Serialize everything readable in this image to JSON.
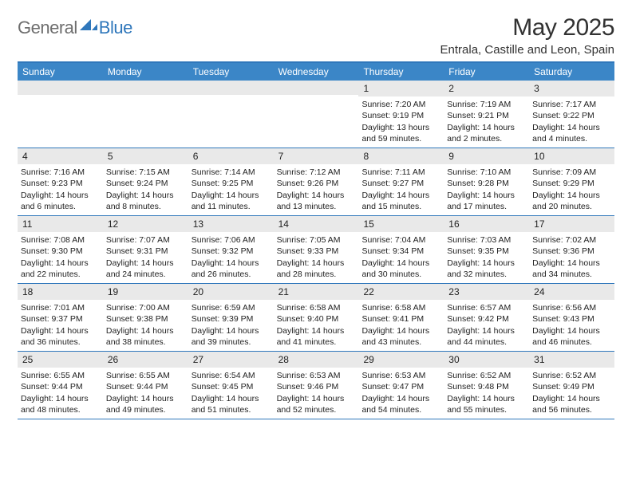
{
  "logo": {
    "general": "General",
    "blue": "Blue"
  },
  "title": "May 2025",
  "location": "Entrala, Castille and Leon, Spain",
  "colors": {
    "header_bar": "#3b86c7",
    "border": "#2f77bb",
    "daynum_bg": "#e9e9e9",
    "text": "#222222",
    "logo_gray": "#6e6e6e",
    "logo_blue": "#2f77bb"
  },
  "days_of_week": [
    "Sunday",
    "Monday",
    "Tuesday",
    "Wednesday",
    "Thursday",
    "Friday",
    "Saturday"
  ],
  "weeks": [
    [
      {
        "num": "",
        "lines": []
      },
      {
        "num": "",
        "lines": []
      },
      {
        "num": "",
        "lines": []
      },
      {
        "num": "",
        "lines": []
      },
      {
        "num": "1",
        "lines": [
          "Sunrise: 7:20 AM",
          "Sunset: 9:19 PM",
          "Daylight: 13 hours and 59 minutes."
        ]
      },
      {
        "num": "2",
        "lines": [
          "Sunrise: 7:19 AM",
          "Sunset: 9:21 PM",
          "Daylight: 14 hours and 2 minutes."
        ]
      },
      {
        "num": "3",
        "lines": [
          "Sunrise: 7:17 AM",
          "Sunset: 9:22 PM",
          "Daylight: 14 hours and 4 minutes."
        ]
      }
    ],
    [
      {
        "num": "4",
        "lines": [
          "Sunrise: 7:16 AM",
          "Sunset: 9:23 PM",
          "Daylight: 14 hours and 6 minutes."
        ]
      },
      {
        "num": "5",
        "lines": [
          "Sunrise: 7:15 AM",
          "Sunset: 9:24 PM",
          "Daylight: 14 hours and 8 minutes."
        ]
      },
      {
        "num": "6",
        "lines": [
          "Sunrise: 7:14 AM",
          "Sunset: 9:25 PM",
          "Daylight: 14 hours and 11 minutes."
        ]
      },
      {
        "num": "7",
        "lines": [
          "Sunrise: 7:12 AM",
          "Sunset: 9:26 PM",
          "Daylight: 14 hours and 13 minutes."
        ]
      },
      {
        "num": "8",
        "lines": [
          "Sunrise: 7:11 AM",
          "Sunset: 9:27 PM",
          "Daylight: 14 hours and 15 minutes."
        ]
      },
      {
        "num": "9",
        "lines": [
          "Sunrise: 7:10 AM",
          "Sunset: 9:28 PM",
          "Daylight: 14 hours and 17 minutes."
        ]
      },
      {
        "num": "10",
        "lines": [
          "Sunrise: 7:09 AM",
          "Sunset: 9:29 PM",
          "Daylight: 14 hours and 20 minutes."
        ]
      }
    ],
    [
      {
        "num": "11",
        "lines": [
          "Sunrise: 7:08 AM",
          "Sunset: 9:30 PM",
          "Daylight: 14 hours and 22 minutes."
        ]
      },
      {
        "num": "12",
        "lines": [
          "Sunrise: 7:07 AM",
          "Sunset: 9:31 PM",
          "Daylight: 14 hours and 24 minutes."
        ]
      },
      {
        "num": "13",
        "lines": [
          "Sunrise: 7:06 AM",
          "Sunset: 9:32 PM",
          "Daylight: 14 hours and 26 minutes."
        ]
      },
      {
        "num": "14",
        "lines": [
          "Sunrise: 7:05 AM",
          "Sunset: 9:33 PM",
          "Daylight: 14 hours and 28 minutes."
        ]
      },
      {
        "num": "15",
        "lines": [
          "Sunrise: 7:04 AM",
          "Sunset: 9:34 PM",
          "Daylight: 14 hours and 30 minutes."
        ]
      },
      {
        "num": "16",
        "lines": [
          "Sunrise: 7:03 AM",
          "Sunset: 9:35 PM",
          "Daylight: 14 hours and 32 minutes."
        ]
      },
      {
        "num": "17",
        "lines": [
          "Sunrise: 7:02 AM",
          "Sunset: 9:36 PM",
          "Daylight: 14 hours and 34 minutes."
        ]
      }
    ],
    [
      {
        "num": "18",
        "lines": [
          "Sunrise: 7:01 AM",
          "Sunset: 9:37 PM",
          "Daylight: 14 hours and 36 minutes."
        ]
      },
      {
        "num": "19",
        "lines": [
          "Sunrise: 7:00 AM",
          "Sunset: 9:38 PM",
          "Daylight: 14 hours and 38 minutes."
        ]
      },
      {
        "num": "20",
        "lines": [
          "Sunrise: 6:59 AM",
          "Sunset: 9:39 PM",
          "Daylight: 14 hours and 39 minutes."
        ]
      },
      {
        "num": "21",
        "lines": [
          "Sunrise: 6:58 AM",
          "Sunset: 9:40 PM",
          "Daylight: 14 hours and 41 minutes."
        ]
      },
      {
        "num": "22",
        "lines": [
          "Sunrise: 6:58 AM",
          "Sunset: 9:41 PM",
          "Daylight: 14 hours and 43 minutes."
        ]
      },
      {
        "num": "23",
        "lines": [
          "Sunrise: 6:57 AM",
          "Sunset: 9:42 PM",
          "Daylight: 14 hours and 44 minutes."
        ]
      },
      {
        "num": "24",
        "lines": [
          "Sunrise: 6:56 AM",
          "Sunset: 9:43 PM",
          "Daylight: 14 hours and 46 minutes."
        ]
      }
    ],
    [
      {
        "num": "25",
        "lines": [
          "Sunrise: 6:55 AM",
          "Sunset: 9:44 PM",
          "Daylight: 14 hours and 48 minutes."
        ]
      },
      {
        "num": "26",
        "lines": [
          "Sunrise: 6:55 AM",
          "Sunset: 9:44 PM",
          "Daylight: 14 hours and 49 minutes."
        ]
      },
      {
        "num": "27",
        "lines": [
          "Sunrise: 6:54 AM",
          "Sunset: 9:45 PM",
          "Daylight: 14 hours and 51 minutes."
        ]
      },
      {
        "num": "28",
        "lines": [
          "Sunrise: 6:53 AM",
          "Sunset: 9:46 PM",
          "Daylight: 14 hours and 52 minutes."
        ]
      },
      {
        "num": "29",
        "lines": [
          "Sunrise: 6:53 AM",
          "Sunset: 9:47 PM",
          "Daylight: 14 hours and 54 minutes."
        ]
      },
      {
        "num": "30",
        "lines": [
          "Sunrise: 6:52 AM",
          "Sunset: 9:48 PM",
          "Daylight: 14 hours and 55 minutes."
        ]
      },
      {
        "num": "31",
        "lines": [
          "Sunrise: 6:52 AM",
          "Sunset: 9:49 PM",
          "Daylight: 14 hours and 56 minutes."
        ]
      }
    ]
  ]
}
